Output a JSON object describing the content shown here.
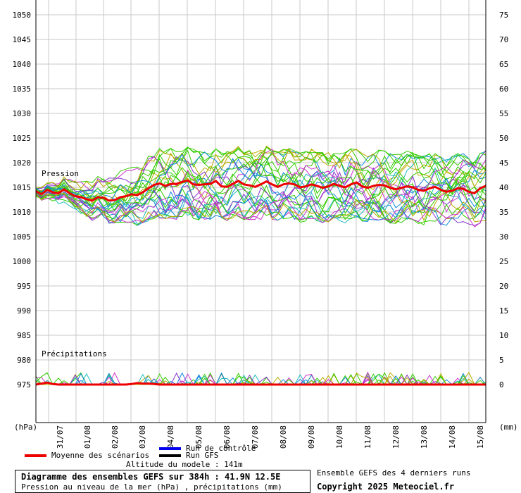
{
  "chart_data": {
    "type": "line",
    "title": "Diagramme des ensembles GEFS sur 384h : 41.9N 12.5E",
    "subtitle": "Pression au niveau de la mer (hPa) , précipitations (mm)",
    "left_axis": {
      "unit": "(hPa)",
      "ylim": [
        970,
        1053
      ],
      "ticks": [
        975,
        980,
        985,
        990,
        995,
        1000,
        1005,
        1010,
        1015,
        1020,
        1025,
        1030,
        1035,
        1040,
        1045,
        1050
      ]
    },
    "right_axis": {
      "unit": "(mm)",
      "ylim": [
        -5,
        78
      ],
      "ticks": [
        0,
        5,
        10,
        15,
        20,
        25,
        30,
        35,
        40,
        45,
        50,
        55,
        60,
        65,
        70,
        75
      ]
    },
    "x_ticks": [
      "31/07",
      "01/08",
      "02/08",
      "03/08",
      "04/08",
      "05/08",
      "06/08",
      "07/08",
      "08/08",
      "09/08",
      "10/08",
      "11/08",
      "12/08",
      "13/08",
      "14/08",
      "15/08"
    ],
    "section_labels": {
      "pressure": "Pression",
      "precip": "Précipitations"
    },
    "grid": true,
    "series": [
      {
        "name": "Moyenne des scénarios",
        "color": "#ee0000",
        "pressure_hPa": [
          1014.2,
          1013.6,
          1014.5,
          1014.0,
          1013.8,
          1014.6,
          1013.8,
          1013.2,
          1013.0,
          1012.6,
          1012.3,
          1013.0,
          1012.9,
          1012.3,
          1012.4,
          1013.0,
          1013.2,
          1013.6,
          1013.4,
          1014.0,
          1014.8,
          1015.5,
          1015.8,
          1015.3,
          1015.7,
          1015.7,
          1016.1,
          1016.4,
          1015.6,
          1015.5,
          1015.6,
          1015.7,
          1016.3,
          1015.2,
          1015.1,
          1015.7,
          1016.3,
          1015.6,
          1015.4,
          1015.1,
          1015.6,
          1016.2,
          1015.6,
          1015.1,
          1015.6,
          1015.8,
          1015.6,
          1015.0,
          1015.2,
          1015.6,
          1015.3,
          1014.9,
          1015.2,
          1015.7,
          1015.3,
          1015.0,
          1015.6,
          1016.0,
          1015.2,
          1014.9,
          1015.3,
          1015.5,
          1015.4,
          1014.9,
          1014.6,
          1014.9,
          1015.2,
          1015.0,
          1014.5,
          1014.3,
          1014.8,
          1015.1,
          1014.5,
          1014.1,
          1014.3,
          1014.8,
          1014.7,
          1014.1,
          1013.8,
          1014.8,
          1015.3
        ],
        "precip_mm": [
          0,
          0.2,
          0.4,
          0.1,
          0,
          0,
          0,
          0,
          0,
          0,
          0,
          0,
          0,
          0,
          0,
          0,
          0,
          0.1,
          0.3,
          0.2,
          0.2,
          0.1,
          0,
          0,
          0,
          0,
          0,
          0,
          0,
          0,
          0,
          0,
          0,
          0,
          0,
          0,
          0,
          0,
          0,
          0,
          0,
          0,
          0,
          0,
          0,
          0,
          0,
          0,
          0,
          0,
          0,
          0,
          0,
          0,
          0,
          0,
          0,
          0,
          0,
          0,
          0,
          0,
          0,
          0,
          0,
          0,
          0,
          0,
          0,
          0,
          0,
          0,
          0,
          0,
          0,
          0,
          0,
          0,
          0,
          0,
          0
        ]
      },
      {
        "name": "Run de contrôle",
        "color": "#0000ee"
      },
      {
        "name": "Run GFS",
        "color": "#000000"
      }
    ],
    "ensemble_members": 30,
    "ensemble_colors": [
      "#33cc00",
      "#33cc00",
      "#33cc00",
      "#cc33cc",
      "#1188dd",
      "#bbaa00",
      "#22bbbb",
      "#8833cc"
    ]
  },
  "legend": {
    "mean": "Moyenne des scénarios",
    "control": "Run de contrôle",
    "gfs": "Run GFS",
    "altitude": "Altitude du modele : 141m"
  },
  "footer": {
    "title": "Diagramme des ensembles GEFS sur 384h : 41.9N 12.5E",
    "subtitle": "Pression au niveau de la mer (hPa) , précipitations (mm)",
    "runs_note": "Ensemble GEFS des 4 derniers runs",
    "copyright": "Copyright 2025 Meteociel.fr"
  }
}
